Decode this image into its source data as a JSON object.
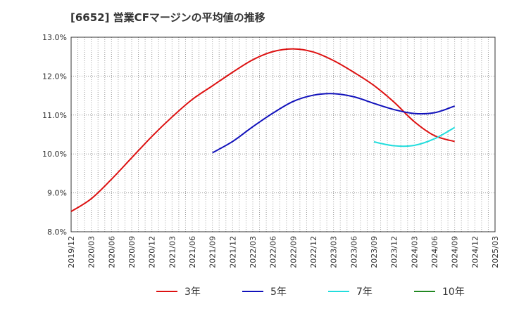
{
  "chart_data": {
    "type": "line",
    "title": "[6652]  営業CFマージンの平均値の推移",
    "xlabel": "",
    "ylabel": "",
    "ylim": [
      8.0,
      13.0
    ],
    "yticks": [
      "13.0%",
      "12.0%",
      "11.0%",
      "10.0%",
      "9.0%",
      "8.0%"
    ],
    "x_ticks": [
      "2019/12",
      "2020/03",
      "2020/06",
      "2020/09",
      "2020/12",
      "2021/03",
      "2021/06",
      "2021/09",
      "2021/12",
      "2022/03",
      "2022/06",
      "2022/09",
      "2022/12",
      "2023/03",
      "2023/06",
      "2023/09",
      "2023/12",
      "2024/03",
      "2024/06",
      "2024/09",
      "2024/12",
      "2025/03"
    ],
    "grid": true,
    "legend_position": "bottom",
    "series": [
      {
        "name": "3年",
        "color": "#dd1111",
        "points": [
          [
            "2019/12",
            8.52
          ],
          [
            "2020/03",
            8.85
          ],
          [
            "2020/06",
            9.35
          ],
          [
            "2020/09",
            9.9
          ],
          [
            "2020/12",
            10.45
          ],
          [
            "2021/03",
            10.95
          ],
          [
            "2021/06",
            11.4
          ],
          [
            "2021/09",
            11.75
          ],
          [
            "2021/12",
            12.1
          ],
          [
            "2022/03",
            12.42
          ],
          [
            "2022/06",
            12.63
          ],
          [
            "2022/09",
            12.7
          ],
          [
            "2022/12",
            12.62
          ],
          [
            "2023/03",
            12.4
          ],
          [
            "2023/06",
            12.1
          ],
          [
            "2023/09",
            11.76
          ],
          [
            "2023/12",
            11.33
          ],
          [
            "2024/03",
            10.83
          ],
          [
            "2024/06",
            10.47
          ],
          [
            "2024/09",
            10.32
          ]
        ]
      },
      {
        "name": "5年",
        "color": "#1111bb",
        "points": [
          [
            "2021/09",
            10.03
          ],
          [
            "2021/12",
            10.32
          ],
          [
            "2022/03",
            10.7
          ],
          [
            "2022/06",
            11.05
          ],
          [
            "2022/09",
            11.35
          ],
          [
            "2022/12",
            11.51
          ],
          [
            "2023/03",
            11.55
          ],
          [
            "2023/06",
            11.47
          ],
          [
            "2023/09",
            11.3
          ],
          [
            "2023/12",
            11.14
          ],
          [
            "2024/03",
            11.04
          ],
          [
            "2024/06",
            11.06
          ],
          [
            "2024/09",
            11.23
          ]
        ]
      },
      {
        "name": "7年",
        "color": "#22dddd",
        "points": [
          [
            "2023/09",
            10.31
          ],
          [
            "2023/12",
            10.21
          ],
          [
            "2024/03",
            10.22
          ],
          [
            "2024/06",
            10.39
          ],
          [
            "2024/09",
            10.68
          ]
        ]
      },
      {
        "name": "10年",
        "color": "#228822",
        "points": []
      }
    ]
  }
}
